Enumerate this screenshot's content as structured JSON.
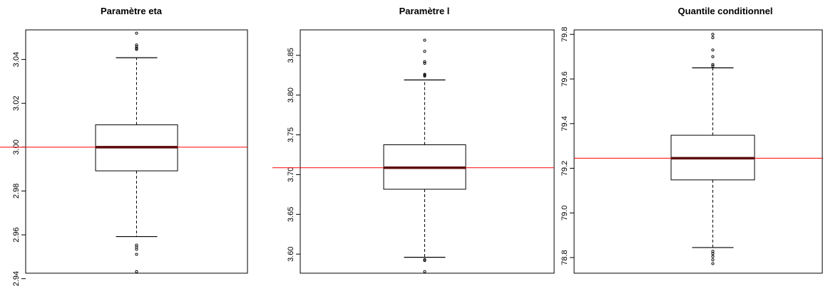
{
  "chart_data": [
    {
      "type": "boxplot",
      "title": "Paramètre eta",
      "ylim": [
        2.9425,
        3.0535
      ],
      "yticks": [
        2.94,
        2.96,
        2.98,
        3.0,
        3.02,
        3.04
      ],
      "ytick_labels": [
        "2.94",
        "2.96",
        "2.98",
        "3.00",
        "3.02",
        "3.04"
      ],
      "box": {
        "q1": 2.9892,
        "median": 3.0,
        "q3": 3.0102,
        "whisker_low": 2.9592,
        "whisker_high": 3.0408
      },
      "outliers": [
        3.0466,
        3.0458,
        3.045,
        3.0446,
        3.052,
        2.9553,
        2.9544,
        2.9534,
        2.9511,
        2.9432
      ],
      "reference_line": 3.0,
      "colors": {
        "box": "#000000",
        "median": "#5c0a0a",
        "reference": "#ff0000"
      }
    },
    {
      "type": "boxplot",
      "title": "Paramètre l",
      "ylim": [
        3.576,
        3.882
      ],
      "yticks": [
        3.6,
        3.65,
        3.7,
        3.75,
        3.8,
        3.85
      ],
      "ytick_labels": [
        "3.60",
        "3.65",
        "3.70",
        "3.75",
        "3.80",
        "3.85"
      ],
      "box": {
        "q1": 3.6816,
        "median": 3.7087,
        "q3": 3.7375,
        "whisker_low": 3.596,
        "whisker_high": 3.819
      },
      "outliers": [
        3.869,
        3.855,
        3.842,
        3.84,
        3.826,
        3.825,
        3.824,
        3.593,
        3.592,
        3.578
      ],
      "reference_line": 3.7087,
      "colors": {
        "box": "#000000",
        "median": "#5c0a0a",
        "reference": "#ff0000"
      }
    },
    {
      "type": "boxplot",
      "title": "Quantile conditionnel",
      "ylim": [
        78.73,
        79.82
      ],
      "yticks": [
        78.8,
        79.0,
        79.2,
        79.4,
        79.6,
        79.8
      ],
      "ytick_labels": [
        "78.8",
        "79.0",
        "79.2",
        "79.4",
        "79.6",
        "79.8"
      ],
      "box": {
        "q1": 79.148,
        "median": 79.245,
        "q3": 79.348,
        "whisker_low": 78.845,
        "whisker_high": 79.65
      },
      "outliers": [
        79.8,
        79.785,
        79.73,
        79.7,
        79.665,
        79.658,
        78.828,
        78.818,
        78.805,
        78.79,
        78.773
      ],
      "reference_line": 79.245,
      "colors": {
        "box": "#000000",
        "median": "#5c0a0a",
        "reference": "#ff0000"
      }
    }
  ]
}
